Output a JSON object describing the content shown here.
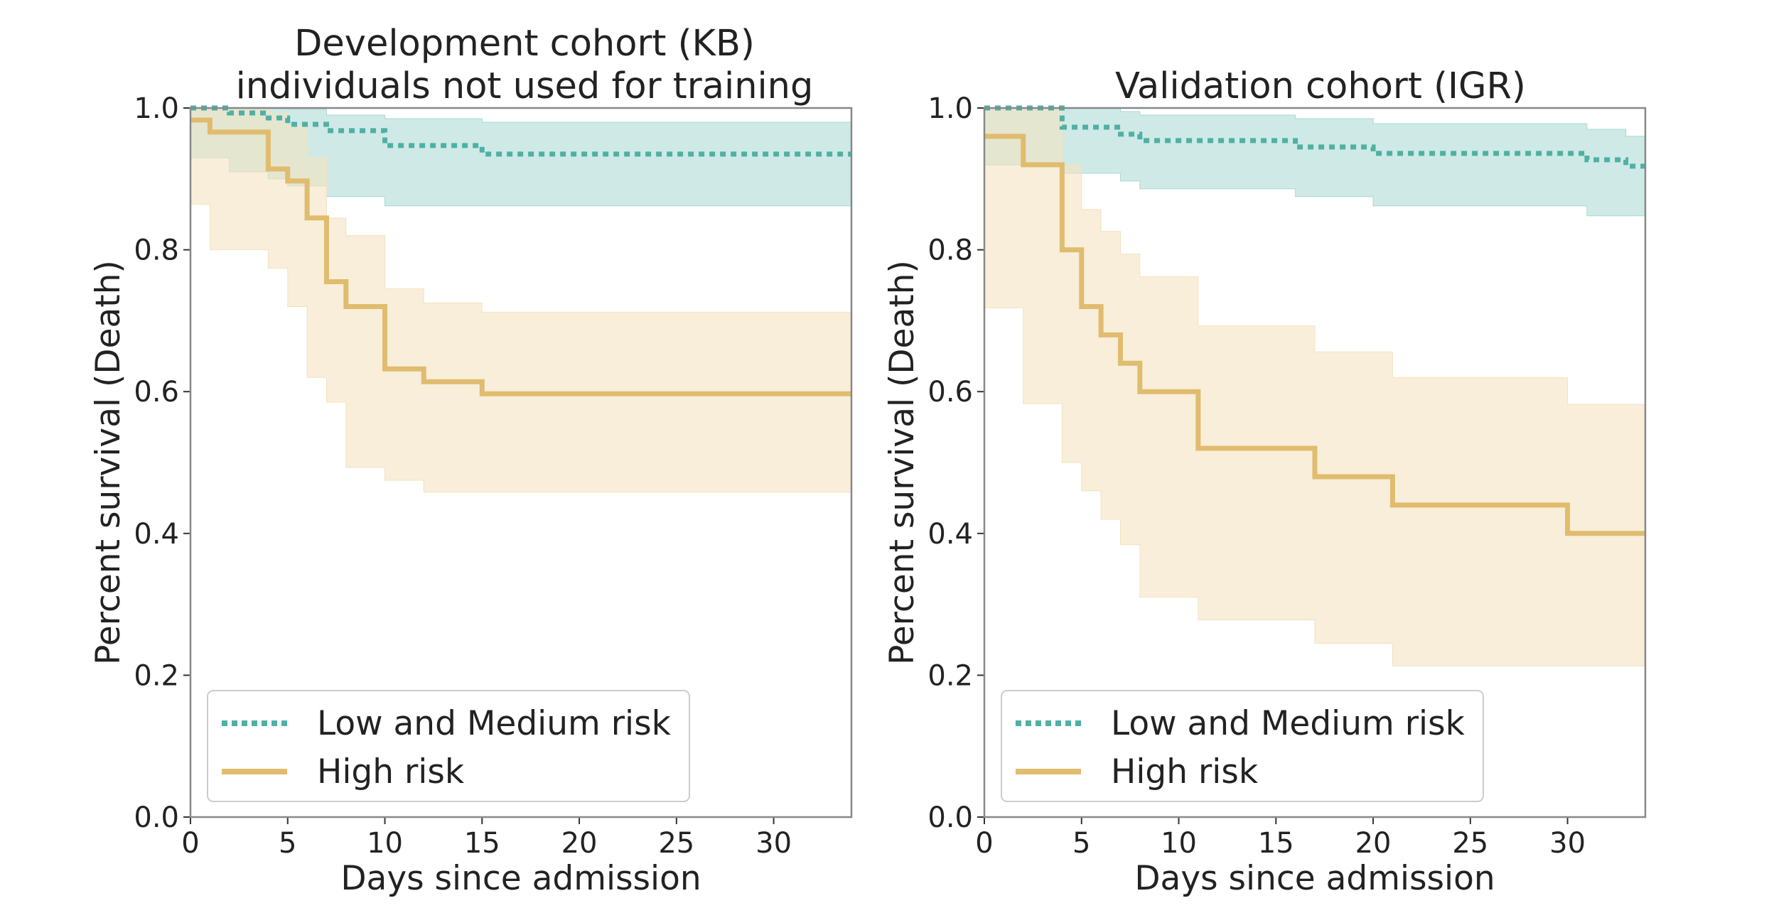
{
  "colors": {
    "low_medium_line": "#4fb0a5",
    "low_medium_band": "#a8d8d2",
    "high_line": "#e0bc6e",
    "high_band": "#f3e2c2",
    "axes": "#888888",
    "text": "#222222"
  },
  "chart_data": [
    {
      "type": "line",
      "title": "Development cohort (KB)\nindividuals not used for training",
      "title_lines": [
        "Development cohort (KB)",
        "individuals not used for training"
      ],
      "xlabel": "Days since admission",
      "ylabel": "Percent survival (Death)",
      "xlim": [
        0,
        34
      ],
      "ylim": [
        0,
        1
      ],
      "xticks": [
        "0",
        "5",
        "10",
        "15",
        "20",
        "25",
        "30"
      ],
      "yticks": [
        "0.0",
        "0.2",
        "0.4",
        "0.6",
        "0.8",
        "1.0"
      ],
      "grid": false,
      "legend_position": "lower-left",
      "legend": [
        "Low and Medium risk",
        "High risk"
      ],
      "series": [
        {
          "name": "Low and Medium risk",
          "style": "dotted",
          "x": [
            0,
            2,
            4,
            5,
            7,
            10,
            15,
            34
          ],
          "y": [
            1.0,
            0.993,
            0.986,
            0.977,
            0.968,
            0.947,
            0.935,
            0.935
          ],
          "ci_lower": [
            1.0,
            0.93,
            0.91,
            0.9,
            0.89,
            0.875,
            0.862,
            0.862
          ],
          "ci_upper": [
            1.0,
            1.0,
            1.0,
            0.998,
            0.99,
            0.985,
            0.98,
            0.97
          ]
        },
        {
          "name": "High risk",
          "style": "solid",
          "x": [
            0,
            1,
            4,
            5,
            6,
            7,
            8,
            10,
            12,
            15,
            34
          ],
          "y": [
            0.983,
            0.966,
            0.914,
            0.897,
            0.845,
            0.755,
            0.72,
            0.632,
            0.614,
            0.597,
            0.597
          ],
          "ci_lower": [
            0.88,
            0.864,
            0.8,
            0.774,
            0.72,
            0.62,
            0.585,
            0.493,
            0.475,
            0.458,
            0.458
          ],
          "ci_upper": [
            1.0,
            1.0,
            0.992,
            0.975,
            0.93,
            0.845,
            0.82,
            0.745,
            0.725,
            0.712,
            0.712
          ]
        }
      ]
    },
    {
      "type": "line",
      "title": "Validation cohort (IGR)",
      "title_lines": [
        "Validation cohort (IGR)"
      ],
      "xlabel": "Days since admission",
      "ylabel": "Percent survival (Death)",
      "xlim": [
        0,
        34
      ],
      "ylim": [
        0,
        1
      ],
      "xticks": [
        "0",
        "5",
        "10",
        "15",
        "20",
        "25",
        "30"
      ],
      "yticks": [
        "0.0",
        "0.2",
        "0.4",
        "0.6",
        "0.8",
        "1.0"
      ],
      "grid": false,
      "legend_position": "lower-left",
      "legend": [
        "Low and Medium risk",
        "High risk"
      ],
      "series": [
        {
          "name": "Low and Medium risk",
          "style": "dotted",
          "x": [
            0,
            4,
            7,
            8,
            16,
            20,
            31,
            33,
            34
          ],
          "y": [
            1.0,
            0.973,
            0.963,
            0.954,
            0.945,
            0.936,
            0.927,
            0.918,
            0.918
          ],
          "ci_lower": [
            1.0,
            0.92,
            0.908,
            0.897,
            0.886,
            0.875,
            0.862,
            0.848,
            0.848
          ],
          "ci_upper": [
            1.0,
            1.0,
            0.995,
            0.99,
            0.985,
            0.978,
            0.97,
            0.96,
            0.96
          ]
        },
        {
          "name": "High risk",
          "style": "solid",
          "x": [
            0,
            2,
            4,
            5,
            6,
            7,
            8,
            11,
            17,
            21,
            30,
            34
          ],
          "y": [
            0.96,
            0.92,
            0.8,
            0.72,
            0.68,
            0.64,
            0.6,
            0.52,
            0.48,
            0.44,
            0.4,
            0.4
          ],
          "ci_lower": [
            0.75,
            0.718,
            0.583,
            0.5,
            0.46,
            0.42,
            0.384,
            0.31,
            0.278,
            0.245,
            0.213,
            0.213
          ],
          "ci_upper": [
            1.0,
            1.0,
            0.92,
            0.857,
            0.826,
            0.794,
            0.762,
            0.693,
            0.656,
            0.62,
            0.582,
            0.582
          ]
        }
      ]
    }
  ]
}
